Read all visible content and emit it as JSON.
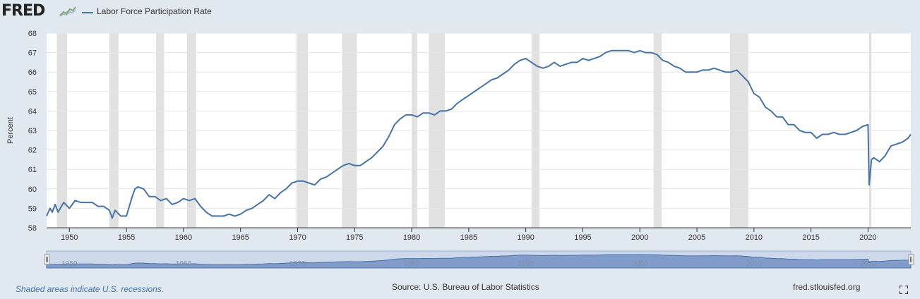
{
  "header": {
    "logo_text": "FRED",
    "logo_icon": "sparkline-chart-icon"
  },
  "footer": {
    "recession_note": "Shaded areas indicate U.S. recessions.",
    "source": "Source: U.S. Bureau of Labor Statistics",
    "site": "fred.stlouisfed.org",
    "fullscreen_icon": "expand-icon"
  },
  "colors": {
    "background": "#e1e9f0",
    "plot_bg": "#ffffff",
    "line": "#4572a7",
    "recession_shade": "#e1e1e1",
    "navigator_bg": "#cdd8ea",
    "navigator_area": "#7392c4"
  },
  "chart_data": {
    "type": "line",
    "title": "",
    "ylabel": "Percent",
    "xlabel": "",
    "legend": [
      "Labor Force Participation Rate"
    ],
    "legend_position": "top-left",
    "ylim": [
      58,
      68
    ],
    "xlim": [
      1948.0,
      2023.75
    ],
    "yticks": [
      58,
      59,
      60,
      61,
      62,
      63,
      64,
      65,
      66,
      67,
      68
    ],
    "xticks": [
      1950,
      1955,
      1960,
      1965,
      1970,
      1975,
      1980,
      1985,
      1990,
      1995,
      2000,
      2005,
      2010,
      2015,
      2020
    ],
    "grid": "horizontal",
    "recessions": [
      [
        1948.9,
        1949.8
      ],
      [
        1953.5,
        1954.3
      ],
      [
        1957.6,
        1958.3
      ],
      [
        1960.3,
        1961.1
      ],
      [
        1969.9,
        1970.9
      ],
      [
        1973.9,
        1975.2
      ],
      [
        1980.0,
        1980.5
      ],
      [
        1981.5,
        1982.9
      ],
      [
        1990.5,
        1991.2
      ],
      [
        2001.2,
        2001.9
      ],
      [
        2007.9,
        2009.5
      ],
      [
        2020.1,
        2020.3
      ]
    ],
    "navigator_labels": [
      1950,
      1960,
      1970,
      1980,
      1990,
      2000,
      2010,
      2020
    ],
    "series": [
      {
        "name": "Labor Force Participation Rate",
        "x": [
          1948.0,
          1948.3,
          1948.5,
          1948.75,
          1949.0,
          1949.5,
          1950.0,
          1950.5,
          1951.0,
          1951.5,
          1952.0,
          1952.5,
          1953.0,
          1953.5,
          1953.75,
          1954.0,
          1954.5,
          1955.0,
          1955.5,
          1955.75,
          1956.0,
          1956.5,
          1957.0,
          1957.5,
          1958.0,
          1958.5,
          1959.0,
          1959.5,
          1960.0,
          1960.5,
          1961.0,
          1961.5,
          1962.0,
          1962.5,
          1963.0,
          1963.5,
          1964.0,
          1964.5,
          1965.0,
          1965.5,
          1966.0,
          1966.5,
          1967.0,
          1967.5,
          1968.0,
          1968.5,
          1969.0,
          1969.5,
          1970.0,
          1970.5,
          1971.0,
          1971.5,
          1972.0,
          1972.5,
          1973.0,
          1973.5,
          1974.0,
          1974.5,
          1975.0,
          1975.5,
          1976.0,
          1976.5,
          1977.0,
          1977.5,
          1978.0,
          1978.5,
          1979.0,
          1979.5,
          1980.0,
          1980.5,
          1981.0,
          1981.5,
          1982.0,
          1982.5,
          1983.0,
          1983.5,
          1984.0,
          1984.5,
          1985.0,
          1985.5,
          1986.0,
          1986.5,
          1987.0,
          1987.5,
          1988.0,
          1988.5,
          1989.0,
          1989.5,
          1990.0,
          1990.5,
          1991.0,
          1991.5,
          1992.0,
          1992.5,
          1993.0,
          1993.5,
          1994.0,
          1994.5,
          1995.0,
          1995.5,
          1996.0,
          1996.5,
          1997.0,
          1997.5,
          1998.0,
          1998.5,
          1999.0,
          1999.5,
          2000.0,
          2000.5,
          2001.0,
          2001.5,
          2002.0,
          2002.5,
          2003.0,
          2003.5,
          2004.0,
          2004.5,
          2005.0,
          2005.5,
          2006.0,
          2006.5,
          2007.0,
          2007.5,
          2008.0,
          2008.5,
          2009.0,
          2009.5,
          2010.0,
          2010.5,
          2011.0,
          2011.5,
          2012.0,
          2012.5,
          2013.0,
          2013.5,
          2014.0,
          2014.5,
          2015.0,
          2015.5,
          2016.0,
          2016.5,
          2017.0,
          2017.5,
          2018.0,
          2018.5,
          2019.0,
          2019.5,
          2020.0,
          2020.1,
          2020.3,
          2020.5,
          2021.0,
          2021.5,
          2022.0,
          2022.5,
          2023.0,
          2023.5,
          2023.75
        ],
        "values": [
          58.6,
          59.0,
          58.8,
          59.2,
          58.8,
          59.3,
          59.0,
          59.4,
          59.3,
          59.3,
          59.3,
          59.1,
          59.1,
          58.9,
          58.5,
          58.9,
          58.6,
          58.6,
          59.6,
          60.0,
          60.1,
          60.0,
          59.6,
          59.6,
          59.4,
          59.5,
          59.2,
          59.3,
          59.5,
          59.4,
          59.5,
          59.1,
          58.8,
          58.6,
          58.6,
          58.6,
          58.7,
          58.6,
          58.7,
          58.9,
          59.0,
          59.2,
          59.4,
          59.7,
          59.5,
          59.8,
          60.0,
          60.3,
          60.4,
          60.4,
          60.3,
          60.2,
          60.5,
          60.6,
          60.8,
          61.0,
          61.2,
          61.3,
          61.2,
          61.2,
          61.4,
          61.6,
          61.9,
          62.2,
          62.7,
          63.3,
          63.6,
          63.8,
          63.8,
          63.7,
          63.9,
          63.9,
          63.8,
          64.0,
          64.0,
          64.1,
          64.4,
          64.6,
          64.8,
          65.0,
          65.2,
          65.4,
          65.6,
          65.7,
          65.9,
          66.1,
          66.4,
          66.6,
          66.7,
          66.5,
          66.3,
          66.2,
          66.3,
          66.5,
          66.3,
          66.4,
          66.5,
          66.5,
          66.7,
          66.6,
          66.7,
          66.8,
          67.0,
          67.1,
          67.1,
          67.1,
          67.1,
          67.0,
          67.1,
          67.0,
          67.0,
          66.9,
          66.6,
          66.5,
          66.3,
          66.2,
          66.0,
          66.0,
          66.0,
          66.1,
          66.1,
          66.2,
          66.1,
          66.0,
          66.0,
          66.1,
          65.8,
          65.5,
          64.9,
          64.7,
          64.2,
          64.0,
          63.7,
          63.7,
          63.3,
          63.3,
          63.0,
          62.9,
          62.9,
          62.6,
          62.8,
          62.8,
          62.9,
          62.8,
          62.8,
          62.9,
          63.0,
          63.2,
          63.3,
          60.2,
          61.5,
          61.6,
          61.4,
          61.7,
          62.2,
          62.3,
          62.4,
          62.6,
          62.8
        ]
      }
    ]
  }
}
